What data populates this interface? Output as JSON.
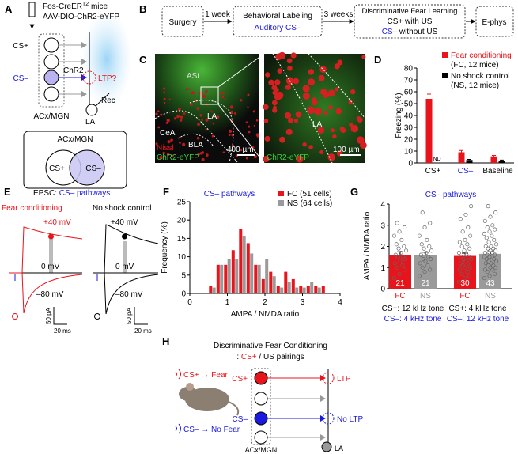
{
  "panel_a": {
    "label": "A",
    "mouse_line": [
      "Fos-CreER",
      "T2",
      " mice"
    ],
    "virus": "AAV-DIO-ChR2-eYFP",
    "cs_plus": "CS+",
    "cs_minus": "CS–",
    "chr2": "ChR2",
    "ltp": "LTP?",
    "rec": "Rec",
    "la": "LA",
    "region": "ACx/MGN",
    "venn_title": "ACx/MGN",
    "venn_left": "CS+",
    "venn_right": "CS–"
  },
  "panel_b": {
    "label": "B",
    "steps": [
      "Surgery",
      "Behavioral Labeling",
      "Discriminative Fear Learning",
      "E-phys"
    ],
    "step2_sub": "Auditory CS–",
    "step3_line1": "CS+ with US",
    "step3_line2": [
      "CS–",
      " without US"
    ],
    "intervals": [
      "1 week",
      "3 weeks"
    ]
  },
  "panel_c": {
    "label": "C",
    "left": [
      "ASt",
      "LA",
      "CeA",
      "BLA",
      "Nissl",
      "ChR2-eYFP",
      "400 µm"
    ],
    "right": [
      "LA",
      "ChR2-eYFP",
      "100 µm"
    ]
  },
  "panel_e": {
    "label": "E",
    "title": [
      "EPSC: ",
      "CS– pathways"
    ],
    "groups": [
      {
        "name": "Fear conditioning",
        "holding": [
          "+40 mV",
          "0 mV",
          "–80 mV"
        ],
        "scale": [
          "50 pA",
          "20 ms"
        ]
      },
      {
        "name": "No shock control",
        "holding": [
          "+40 mV",
          "0 mV",
          "–80 mV"
        ],
        "scale": [
          "50 pA",
          "20 ms"
        ]
      }
    ]
  },
  "panel_h": {
    "label": "H",
    "title": "Discriminative Fear Conditioning",
    "subtitle": [
      ": ",
      "CS+",
      " / US pairings"
    ],
    "behavior": [
      "CS+ → Fear",
      "CS– → No Fear"
    ],
    "inputs": [
      "CS+",
      "CS–"
    ],
    "outcomes": [
      "LTP",
      "No LTP"
    ],
    "region": "ACx/MGN",
    "target": "LA"
  },
  "chart_data": [
    {
      "panel": "D",
      "type": "bar",
      "categories": [
        "CS+",
        "CS–",
        "Baseline"
      ],
      "category_colors": [
        "#000000",
        "#1a1adf",
        "#000000"
      ],
      "ylabel": "Freezing (%)",
      "ylim": [
        0,
        80
      ],
      "yticks": [
        0,
        10,
        20,
        30,
        40,
        50,
        60,
        70,
        80
      ],
      "series": [
        {
          "name": "Fear conditioning",
          "name_note": "(FC, 12 mice)",
          "color": "#e8141b",
          "values": [
            54,
            9,
            5.5
          ],
          "errors": [
            4,
            1.5,
            0.8
          ]
        },
        {
          "name": "No shock control",
          "name_note": "(NS, 12 mice)",
          "color": "#000000",
          "values": [
            null,
            2.5,
            2
          ],
          "errors": [
            null,
            0.5,
            0.4
          ],
          "value_labels": [
            "ND",
            null,
            null
          ]
        }
      ]
    },
    {
      "panel": "F",
      "type": "bar",
      "title": "CS– pathways",
      "xlabel": "AMPA / NMDA ratio",
      "ylabel": "Frequency (%)",
      "xlim": [
        0,
        4
      ],
      "xticks": [
        0,
        1,
        2,
        3,
        4
      ],
      "ylim": [
        0,
        25
      ],
      "yticks": [
        0,
        5,
        10,
        15,
        20,
        25
      ],
      "x": [
        0.6,
        0.8,
        1.0,
        1.2,
        1.4,
        1.6,
        1.8,
        2.0,
        2.2,
        2.4,
        2.6,
        2.8,
        3.0,
        3.2,
        3.4,
        3.6
      ],
      "series": [
        {
          "name": "FC (51 cells)",
          "color": "#e8141b",
          "values": [
            2,
            7.8,
            7.8,
            11.8,
            17.6,
            13.7,
            7.8,
            3.9,
            5.9,
            2,
            5.9,
            3.9,
            2,
            2,
            2,
            2
          ]
        },
        {
          "name": "NS (64 cells)",
          "color": "#9a9a9a",
          "values": [
            1.6,
            7.8,
            9.4,
            9.4,
            15.6,
            10.9,
            7.8,
            9.4,
            4.7,
            1.6,
            3.1,
            1.6,
            1.6,
            3.1,
            1.6,
            0
          ]
        }
      ]
    },
    {
      "panel": "G",
      "type": "bar",
      "title": "CS– pathways",
      "ylabel": "AMPA / NMDA ratio",
      "ylim": [
        0,
        4
      ],
      "yticks": [
        0,
        1,
        2,
        3,
        4
      ],
      "categories": [
        "FC",
        "NS",
        "FC",
        "NS"
      ],
      "colors": [
        "#e8141b",
        "#9a9a9a",
        "#e8141b",
        "#9a9a9a"
      ],
      "values": [
        1.6,
        1.6,
        1.55,
        1.65
      ],
      "errors": [
        0.15,
        0.13,
        0.13,
        0.1
      ],
      "counts": [
        21,
        21,
        30,
        43
      ],
      "points": [
        [
          0.5,
          0.7,
          0.9,
          1.0,
          1.1,
          1.2,
          1.3,
          1.4,
          1.5,
          1.5,
          1.6,
          1.7,
          1.8,
          1.9,
          2.0,
          2.1,
          2.3,
          2.5,
          2.7,
          2.9,
          3.1
        ],
        [
          0.6,
          0.8,
          0.9,
          1.0,
          1.1,
          1.2,
          1.3,
          1.4,
          1.4,
          1.5,
          1.6,
          1.7,
          1.8,
          1.9,
          2.0,
          2.1,
          2.3,
          2.5,
          2.9,
          3.1,
          3.6
        ],
        [
          0.3,
          0.5,
          0.6,
          0.7,
          0.8,
          0.9,
          1.0,
          1.0,
          1.1,
          1.2,
          1.2,
          1.3,
          1.4,
          1.4,
          1.5,
          1.5,
          1.6,
          1.7,
          1.8,
          1.9,
          2.0,
          2.1,
          2.2,
          2.3,
          2.5,
          2.7,
          2.9,
          3.3,
          3.5,
          3.9
        ],
        [
          0.5,
          0.6,
          0.7,
          0.8,
          0.9,
          0.9,
          1.0,
          1.0,
          1.1,
          1.1,
          1.2,
          1.2,
          1.3,
          1.3,
          1.4,
          1.4,
          1.5,
          1.5,
          1.5,
          1.6,
          1.6,
          1.7,
          1.7,
          1.8,
          1.8,
          1.9,
          1.9,
          2.0,
          2.0,
          2.1,
          2.2,
          2.3,
          2.4,
          2.5,
          2.6,
          2.7,
          2.8,
          2.9,
          3.0,
          3.2,
          3.4,
          3.6,
          3.9
        ]
      ],
      "conditions": [
        {
          "cs_plus": "CS+: 12 kHz tone",
          "cs_minus": "CS–: 4 kHz tone"
        },
        {
          "cs_plus": "CS+: 4 kHz tone",
          "cs_minus": "CS–: 12 kHz tone"
        }
      ]
    }
  ]
}
